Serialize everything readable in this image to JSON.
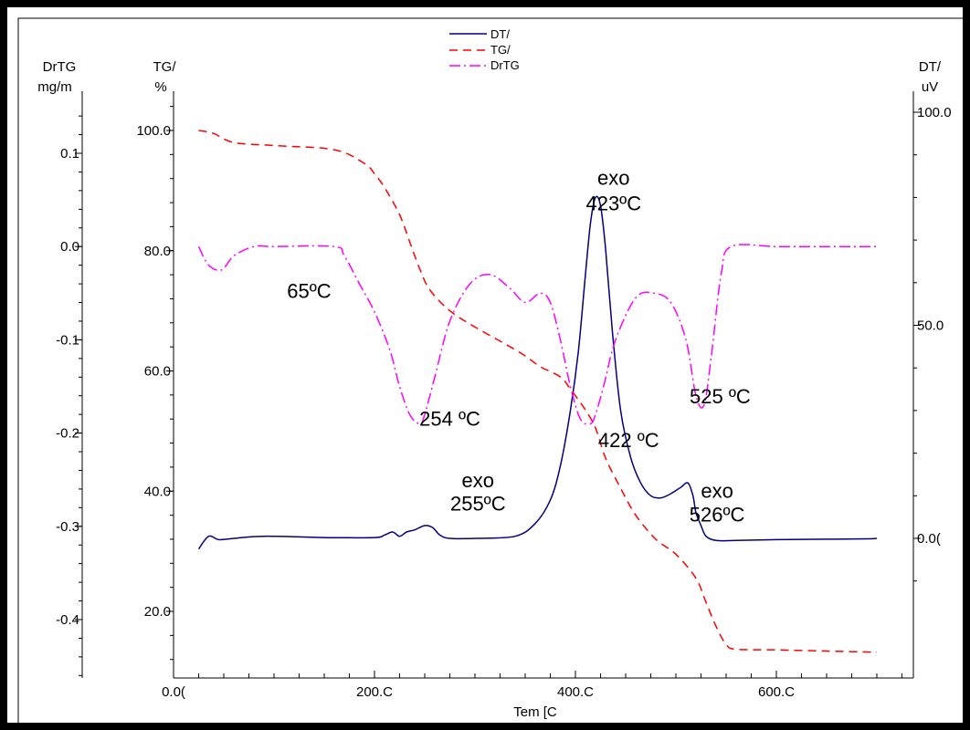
{
  "chart_data": {
    "type": "line",
    "xlabel": "Tem [C",
    "x_ticks": [
      "0.0(",
      "200.C",
      "400.C",
      "600.C"
    ],
    "xlim": [
      0,
      740
    ],
    "axes": {
      "drtg": {
        "title": "DrTG",
        "unit": "mg/m",
        "ylim": [
          -0.47,
          0.15
        ],
        "tick_values": [
          0.1,
          0.0,
          -0.1,
          -0.2,
          -0.3,
          -0.4
        ],
        "tick_labels": [
          "0.1",
          "0.0",
          "-0.1",
          "-0.2",
          "-0.3",
          "-0.4"
        ]
      },
      "tga": {
        "title": "TG/",
        "unit": "%",
        "ylim": [
          9,
          106
        ],
        "tick_values": [
          100,
          80,
          60,
          40,
          20
        ],
        "tick_labels": [
          "100.0",
          "80.0",
          "60.0",
          "40.0",
          "20.0"
        ]
      },
      "dta": {
        "title": "DT/",
        "unit": "uV",
        "ylim": [
          -13,
          102
        ],
        "tick_values": [
          100,
          50,
          0
        ],
        "tick_labels": [
          "100.0",
          "50.0",
          "0.0("
        ]
      }
    },
    "legend": {
      "position": "top-center",
      "entries": [
        "DT/",
        "TG/",
        "DrTG"
      ]
    },
    "series": [
      {
        "name": "DT/",
        "axis": "dta",
        "color": "#000080",
        "dash": "solid",
        "x": [
          25,
          35,
          45,
          60,
          90,
          150,
          200,
          210,
          218,
          225,
          232,
          240,
          250,
          258,
          265,
          275,
          300,
          340,
          360,
          375,
          385,
          395,
          403,
          410,
          415,
          420,
          425,
          430,
          437,
          445,
          455,
          465,
          475,
          485,
          495,
          505,
          512,
          517,
          520,
          525,
          530,
          540,
          560,
          600,
          650,
          690,
          700
        ],
        "y": [
          -2.5,
          0.5,
          -0.3,
          0.0,
          0.5,
          0.2,
          0.2,
          0.8,
          1.5,
          0.5,
          1.5,
          2.0,
          3.0,
          2.5,
          0.8,
          0.0,
          0.0,
          0.5,
          3.5,
          9.0,
          17.0,
          30.0,
          44.0,
          62.0,
          74.0,
          80.0,
          78.0,
          68.0,
          48.0,
          30.0,
          19.0,
          13.0,
          10.0,
          9.5,
          10.5,
          12.0,
          13.0,
          10.0,
          6.0,
          3.0,
          0.5,
          -0.5,
          -0.5,
          -0.3,
          -0.2,
          -0.1,
          0.0
        ]
      },
      {
        "name": "TG/",
        "axis": "tga",
        "color": "#ff0000",
        "dash": "9,6",
        "x": [
          25,
          40,
          60,
          100,
          160,
          190,
          200,
          210,
          225,
          235,
          245,
          255,
          275,
          300,
          330,
          350,
          365,
          385,
          395,
          410,
          420,
          430,
          445,
          460,
          480,
          500,
          520,
          530,
          540,
          550,
          560,
          600,
          650,
          700
        ],
        "y": [
          100.0,
          99.5,
          98.0,
          97.5,
          96.8,
          94.5,
          92.8,
          90.5,
          86.0,
          81.5,
          77.0,
          73.5,
          70.0,
          67.3,
          64.5,
          62.5,
          60.7,
          59.0,
          57.0,
          53.5,
          50.5,
          45.5,
          40.5,
          36.0,
          32.0,
          29.5,
          25.5,
          21.5,
          17.5,
          14.5,
          13.7,
          13.6,
          13.4,
          13.2
        ]
      },
      {
        "name": "DrTG",
        "axis": "drtg",
        "color": "#ff00ff",
        "dash": "12,4,2,4",
        "x": [
          25,
          35,
          48,
          60,
          80,
          100,
          160,
          170,
          185,
          200,
          215,
          225,
          235,
          245,
          250,
          260,
          275,
          295,
          315,
          335,
          350,
          365,
          375,
          385,
          395,
          405,
          415,
          420,
          428,
          440,
          460,
          478,
          495,
          510,
          520,
          528,
          535,
          545,
          555,
          600,
          650,
          700
        ],
        "y": [
          0.0,
          -0.02,
          -0.025,
          -0.01,
          0.0,
          0.0,
          0.0,
          -0.01,
          -0.04,
          -0.07,
          -0.11,
          -0.15,
          -0.18,
          -0.19,
          -0.18,
          -0.14,
          -0.08,
          -0.04,
          -0.03,
          -0.045,
          -0.06,
          -0.05,
          -0.06,
          -0.1,
          -0.15,
          -0.185,
          -0.19,
          -0.18,
          -0.15,
          -0.1,
          -0.055,
          -0.05,
          -0.06,
          -0.1,
          -0.16,
          -0.17,
          -0.12,
          -0.03,
          0.0,
          0.0,
          0.0,
          0.0
        ]
      }
    ],
    "annotations": [
      {
        "text": "65ºC",
        "x": 135,
        "axis": "drtg",
        "y": -0.055
      },
      {
        "text": "254 ºC",
        "x": 275,
        "axis": "drtg",
        "y": -0.192
      },
      {
        "text": "exo",
        "x": 303,
        "axis": "dta",
        "y": 12
      },
      {
        "text": "255ºC",
        "x": 303,
        "axis": "dta",
        "y": 6.5
      },
      {
        "text": "exo",
        "x": 438,
        "axis": "dta",
        "y": 83
      },
      {
        "text": "423ºC",
        "x": 438,
        "axis": "dta",
        "y": 77
      },
      {
        "text": "422 ºC",
        "x": 453,
        "axis": "drtg",
        "y": -0.215
      },
      {
        "text": "525 ºC",
        "x": 544,
        "axis": "drtg",
        "y": -0.168
      },
      {
        "text": "exo",
        "x": 541,
        "axis": "dta",
        "y": 9.5
      },
      {
        "text": "526ºC",
        "x": 541,
        "axis": "dta",
        "y": 4
      }
    ]
  }
}
